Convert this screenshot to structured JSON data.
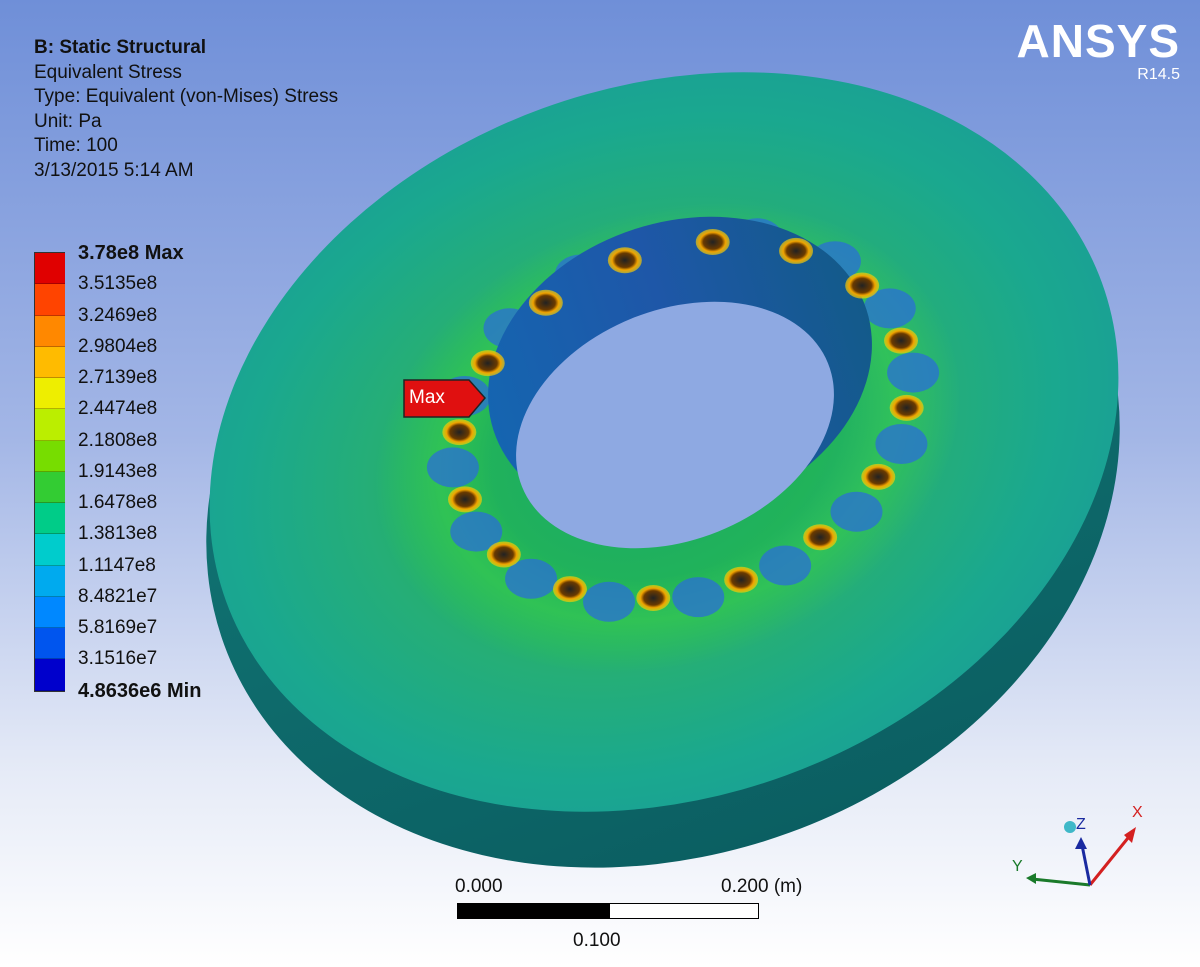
{
  "info": {
    "analysis_title": "B: Static Structural",
    "result_name": "Equivalent Stress",
    "result_type": "Type: Equivalent (von-Mises) Stress",
    "unit": "Unit: Pa",
    "time": "Time: 100",
    "timestamp": "3/13/2015 5:14 AM"
  },
  "legend": {
    "labels": [
      "3.78e8 Max",
      "3.5135e8",
      "3.2469e8",
      "2.9804e8",
      "2.7139e8",
      "2.4474e8",
      "2.1808e8",
      "1.9143e8",
      "1.6478e8",
      "1.3813e8",
      "1.1147e8",
      "8.4821e7",
      "5.8169e7",
      "3.1516e7",
      "4.8636e6 Min"
    ],
    "colors": [
      "#e00000",
      "#ff4400",
      "#ff8800",
      "#ffbb00",
      "#eeee00",
      "#bbee00",
      "#77dd00",
      "#33cc33",
      "#00cc88",
      "#00cccc",
      "#00aaee",
      "#0088ff",
      "#0055ee",
      "#0000cc"
    ]
  },
  "brand": {
    "name": "ANSYS",
    "version": "R14.5"
  },
  "max_marker": {
    "label": "Max"
  },
  "scale_bar": {
    "left_label": "0.000",
    "right_label": "0.200 (m)",
    "mid_label": "0.100"
  },
  "triad": {
    "x_label": "X",
    "y_label": "Y",
    "z_label": "Z"
  }
}
